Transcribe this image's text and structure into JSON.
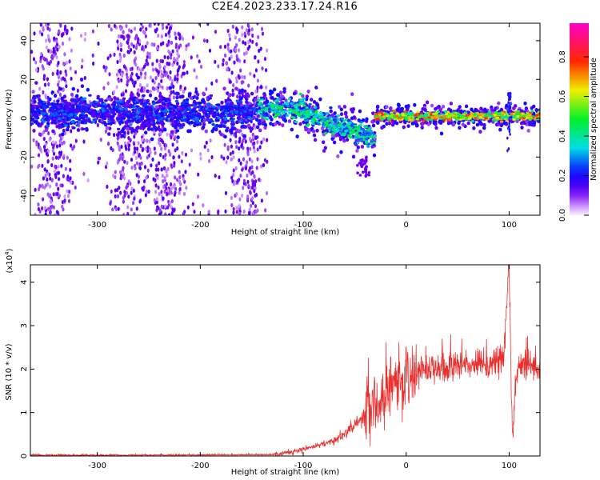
{
  "title": "C2E4.2023.233.17.24.R16",
  "chart_data": [
    {
      "type": "heatmap",
      "xlabel": "Height of straight line (km)",
      "ylabel": "Frequency (Hz)",
      "xlim": [
        -365,
        130
      ],
      "ylim": [
        -50,
        49
      ],
      "x_ticks": [
        -300,
        -200,
        -100,
        0,
        100
      ],
      "y_ticks": [
        -40,
        -20,
        0,
        20,
        40
      ],
      "colorbar": {
        "label": "Normalized spectral amplitude",
        "range": [
          0,
          0.97
        ],
        "ticks": [
          "0.0",
          "0.2",
          "0.4",
          "0.6",
          "0.8"
        ],
        "colormap": "rainbow (white-violet-blue-cyan-green-yellow-red-magenta)"
      },
      "segments": [
        {
          "x_start": -365,
          "x_end": -145,
          "center_hz": 3,
          "amplitude": 0.35,
          "vertical_streaks": [
            -350,
            -335,
            -275,
            -260,
            -240,
            -225,
            -165,
            -150
          ]
        },
        {
          "x_start": -145,
          "x_end": -30,
          "center_hz": 0,
          "amplitude": 0.55,
          "note": "band bends downward to about -15 Hz near -40 km"
        },
        {
          "x_start": -30,
          "x_end": 130,
          "center_hz": 1,
          "amplitude": 0.85,
          "note": "narrow high-amplitude band near 0 Hz"
        }
      ]
    },
    {
      "type": "line",
      "xlabel": "Height of straight line (km)",
      "ylabel": "SNR (10 * v/v)",
      "y_multiplier_label": "(x10",
      "y_multiplier_exp": "4",
      "xlim": [
        -365,
        130
      ],
      "ylim": [
        0,
        4.4
      ],
      "x_ticks": [
        -300,
        -200,
        -100,
        0,
        100
      ],
      "y_ticks": [
        0,
        1,
        2,
        3,
        4
      ],
      "color": "#e8312f",
      "key_points": {
        "x": [
          -365,
          -250,
          -130,
          -100,
          -70,
          -50,
          -35,
          -20,
          -10,
          0,
          20,
          50,
          80,
          95,
          100,
          103,
          107,
          115,
          130
        ],
        "y": [
          0.01,
          0.01,
          0.02,
          0.15,
          0.35,
          0.7,
          1.1,
          1.45,
          1.7,
          1.85,
          2.0,
          2.1,
          2.1,
          2.3,
          4.4,
          0.3,
          2.0,
          2.1,
          2.0
        ]
      }
    }
  ]
}
